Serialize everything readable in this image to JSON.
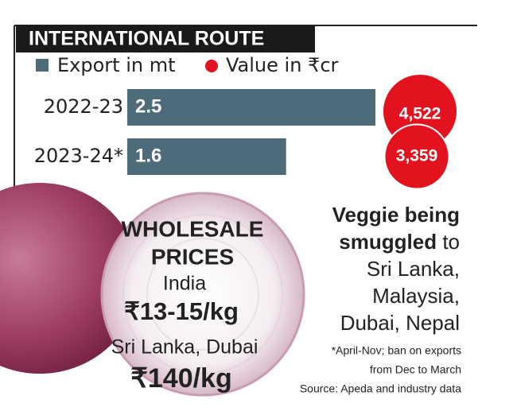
{
  "chart_data": {
    "type": "bar",
    "title": "INTERNATIONAL ROUTE",
    "categories": [
      "2022-23",
      "2023-24*"
    ],
    "series": [
      {
        "name": "Export in mt",
        "color": "#4d6b78",
        "values": [
          2.5,
          1.6
        ]
      },
      {
        "name": "Value in ₹cr",
        "color": "#e3121f",
        "values": [
          4522,
          3359
        ],
        "value_labels": [
          "4,522",
          "3,359"
        ]
      }
    ]
  },
  "wholesale": {
    "title": [
      "WHOLESALE",
      "PRICES"
    ],
    "rows": [
      {
        "place": "India",
        "price": "₹13-15/kg"
      },
      {
        "place": "Sri Lanka, Dubai",
        "price": "₹140/kg"
      }
    ]
  },
  "note": {
    "bold": [
      "Veggie being",
      "smuggled"
    ],
    "lines": [
      "to",
      "Sri Lanka,",
      "Malaysia,",
      "Dubai, Nepal"
    ]
  },
  "footnotes": [
    "*April-Nov; ban on exports",
    "from Dec to March",
    "Source: Apeda and industry data"
  ]
}
